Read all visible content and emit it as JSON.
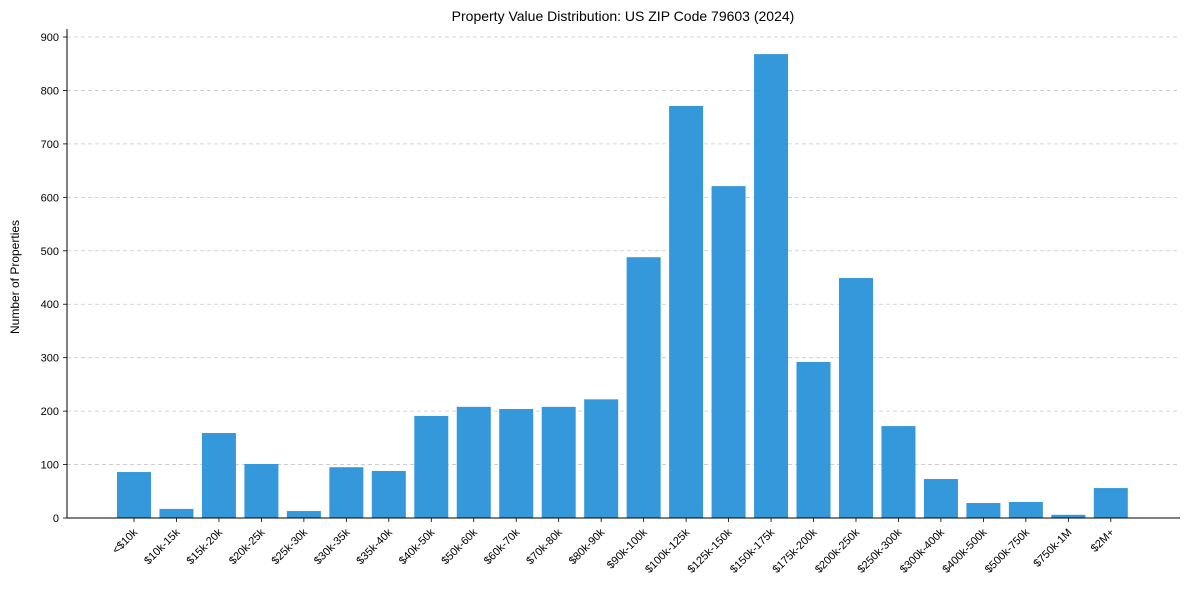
{
  "chart_data": {
    "type": "bar",
    "title": "Property Value Distribution: US ZIP Code 79603 (2024)",
    "xlabel": "",
    "ylabel": "Number of Properties",
    "ylim": [
      0,
      915
    ],
    "yticks": [
      0,
      100,
      200,
      300,
      400,
      500,
      600,
      700,
      800,
      900
    ],
    "grid": "y-dashed",
    "bar_color": "#3498db",
    "categories": [
      "<$10k",
      "$10k-15k",
      "$15k-20k",
      "$20k-25k",
      "$25k-30k",
      "$30k-35k",
      "$35k-40k",
      "$40k-50k",
      "$50k-60k",
      "$60k-70k",
      "$70k-80k",
      "$80k-90k",
      "$90k-100k",
      "$100k-125k",
      "$125k-150k",
      "$150k-175k",
      "$175k-200k",
      "$200k-250k",
      "$250k-300k",
      "$300k-400k",
      "$400k-500k",
      "$500k-750k",
      "$750k-1M",
      "$2M+"
    ],
    "values": [
      86,
      17,
      159,
      101,
      13,
      95,
      88,
      191,
      208,
      204,
      208,
      222,
      488,
      771,
      621,
      868,
      292,
      449,
      172,
      73,
      28,
      30,
      6,
      56
    ]
  }
}
